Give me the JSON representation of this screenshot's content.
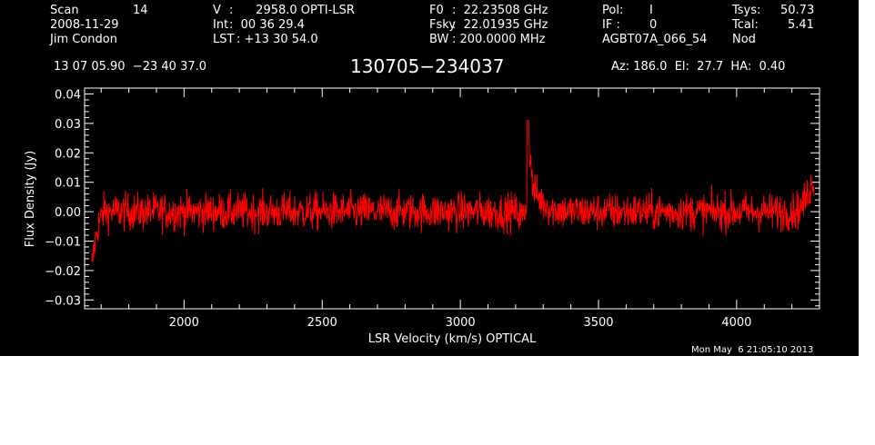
{
  "header": {
    "row1": [
      {
        "label": "Scan",
        "value": "14"
      },
      {
        "label": "V",
        "value": ":      2958.0 OPTI-LSR"
      },
      {
        "label": "F0",
        "value": ":  22.23508 GHz"
      },
      {
        "label": "Pol:",
        "value": "I"
      },
      {
        "label": "Tsys:",
        "value": "50.73"
      }
    ],
    "row2": [
      {
        "label": "2008-11-29",
        "value": ""
      },
      {
        "label": "Int",
        "value": ":  00 36 29.4"
      },
      {
        "label": "Fsky",
        "value": ":  22.01935 GHz"
      },
      {
        "label": "IF :",
        "value": "0"
      },
      {
        "label": "Tcal:",
        "value": "5.41"
      }
    ],
    "row3": [
      {
        "label": "Jim Condon",
        "value": ""
      },
      {
        "label": "LST",
        "value": ": +13 30 54.0"
      },
      {
        "label": "BW",
        "value": ": 200.0000 MHz"
      },
      {
        "label": "AGBT07A_066_54",
        "value": ""
      },
      {
        "label": "Nod",
        "value": ""
      }
    ],
    "coords": "13 07 05.90  −23 40 37.0",
    "source": "130705−234037",
    "pointing": "Az: 186.0  El:  27.7  HA:  0.40",
    "timestamp": "Mon May  6 21:05:10 2013"
  },
  "colors": {
    "background": "#000000",
    "axes": "#ffffff",
    "trace": "#ff0000"
  },
  "chart_data": {
    "type": "line",
    "title": "130705−234037",
    "xlabel": "LSR Velocity (km/s) OPTICAL",
    "ylabel": "Flux Density (Jy)",
    "xlim": [
      1640,
      4300
    ],
    "ylim": [
      -0.033,
      0.042
    ],
    "xticks": [
      2000,
      2500,
      3000,
      3500,
      4000
    ],
    "yticks": [
      -0.03,
      -0.02,
      -0.01,
      0.0,
      0.01,
      0.02,
      0.03,
      0.04
    ],
    "ytick_labels": [
      "−0.03",
      "−0.02",
      "−0.01",
      "0.00",
      "0.01",
      "0.02",
      "0.03",
      "0.04"
    ],
    "grid": false,
    "series": [
      {
        "x": [
          1665,
          1675,
          1690,
          1710,
          1750,
          1800,
          1900,
          2000,
          2100,
          2200,
          2300,
          2400,
          2500,
          2600,
          2700,
          2800,
          2900,
          3000,
          3100,
          3150,
          3200,
          3230,
          3240,
          3250,
          3258,
          3265,
          3280,
          3300,
          3330,
          3400,
          3500,
          3600,
          3700,
          3800,
          3900,
          4000,
          4100,
          4200,
          4230,
          4250,
          4265,
          4280
        ],
        "y": [
          -0.02,
          -0.012,
          -0.004,
          0.0,
          0.0,
          0.0,
          0.0,
          0.0,
          0.0,
          0.0,
          0.0,
          0.0,
          0.0,
          0.0,
          0.0,
          0.0,
          0.0,
          0.0,
          0.0,
          0.0,
          0.0,
          -0.002,
          0.004,
          0.022,
          0.012,
          0.008,
          0.005,
          0.003,
          0.001,
          0.0,
          0.0,
          0.0,
          0.0,
          0.0,
          0.0,
          0.0,
          0.0,
          0.0,
          0.001,
          0.004,
          0.008,
          0.011
        ]
      }
    ]
  }
}
